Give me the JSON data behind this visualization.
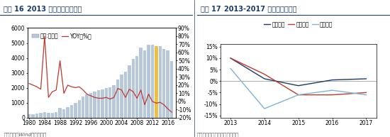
{
  "chart1": {
    "title_prefix": "图表 16  ",
    "title_main": "2013 年后产能见顶下滑",
    "years": [
      1980,
      1981,
      1982,
      1983,
      1984,
      1985,
      1986,
      1987,
      1988,
      1989,
      1990,
      1991,
      1992,
      1993,
      1994,
      1995,
      1996,
      1997,
      1998,
      1999,
      2000,
      2001,
      2002,
      2003,
      2004,
      2005,
      2006,
      2007,
      2008,
      2009,
      2010,
      2011,
      2012,
      2013,
      2014,
      2015,
      2016,
      2017
    ],
    "production": [
      215,
      250,
      280,
      320,
      400,
      310,
      350,
      400,
      660,
      550,
      690,
      840,
      1000,
      1200,
      1400,
      1560,
      1680,
      1760,
      1840,
      1900,
      2000,
      2060,
      2160,
      2540,
      2900,
      3060,
      3510,
      3931,
      4103,
      4680,
      4483,
      4899,
      4902,
      4800,
      4780,
      4610,
      4506,
      3800
    ],
    "yoy": [
      22,
      20,
      18,
      15,
      80,
      5,
      12,
      14,
      50,
      10,
      20,
      18,
      17,
      18,
      14,
      9,
      7,
      5,
      4,
      4,
      5,
      3,
      5,
      16,
      14,
      5,
      15,
      12,
      4,
      14,
      -4,
      9,
      0,
      -2,
      -1,
      -4,
      -9,
      -13
    ],
    "bar_color": "#b8c8dc",
    "highlight_bar_index": 33,
    "highlight_bar_color": "#f0c040",
    "yoy_color": "#c0392b",
    "left_ylim": [
      0,
      6000
    ],
    "right_ylim": [
      -20,
      90
    ],
    "left_yticks": [
      0,
      1000,
      2000,
      3000,
      4000,
      5000,
      6000
    ],
    "right_yticks": [
      -20,
      -10,
      0,
      10,
      20,
      30,
      40,
      50,
      60,
      70,
      80,
      90
    ],
    "right_yticklabels": [
      "-20%",
      "-10%",
      "0%",
      "10%",
      "20%",
      "30%",
      "40%",
      "50%",
      "60%",
      "70%",
      "80%",
      "90%"
    ],
    "xticks": [
      1980,
      1984,
      1988,
      1992,
      1996,
      2000,
      2004,
      2008,
      2012,
      2016
    ],
    "source": "资料来源：Wind，华创证券",
    "legend_bar": "产量:万千升",
    "legend_line": "YOY（%）"
  },
  "chart2": {
    "title_prefix": "图表 17  ",
    "title_main": "2013-2017 年公司销量增速",
    "years": [
      2013,
      2014,
      2015,
      2016,
      2017
    ],
    "huarun": [
      10,
      1,
      -2,
      0.5,
      1
    ],
    "qingdao": [
      10,
      3,
      -6,
      -6,
      -5
    ],
    "chongqing": [
      5.5,
      -12,
      -6,
      -4,
      -6
    ],
    "huarun_color": "#1a3a6b",
    "qingdao_color": "#c0392b",
    "chongqing_color": "#7fb3d3",
    "yticks": [
      -15,
      -10,
      -5,
      0,
      5,
      10,
      15
    ],
    "yticklabels": [
      "-15%",
      "-10%",
      "-5%",
      "0%",
      "5%",
      "10%",
      "15%"
    ],
    "ylim": [
      -16,
      16
    ],
    "xticks": [
      2013,
      2014,
      2015,
      2016,
      2017
    ],
    "source": "资料来源：公司公告，华创证券",
    "legend_huarun": "华润啤酒",
    "legend_qingdao": "青岛啤酒",
    "legend_chongqing": "重庆啤酒"
  },
  "title_color": "#1a3a6b",
  "title_fontsize": 7.0,
  "tick_fontsize": 5.5,
  "source_fontsize": 5.0,
  "legend_fontsize": 5.5,
  "background_color": "#ffffff",
  "divider_color": "#1a3a6b",
  "header_bg_color": "#dce6f0",
  "header_line_color": "#1a3a6b"
}
